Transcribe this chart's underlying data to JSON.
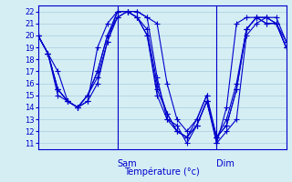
{
  "title": "Température (°c)",
  "bg_color": "#d4eef4",
  "line_color": "#0000cc",
  "grid_color": "#aaccdd",
  "ylim": [
    10.5,
    22.5
  ],
  "ylabel_ticks": [
    11,
    12,
    13,
    14,
    15,
    16,
    17,
    18,
    19,
    20,
    21,
    22
  ],
  "series": [
    [
      20.0,
      18.5,
      17.0,
      14.5,
      14.0,
      14.5,
      19.0,
      21.0,
      22.0,
      22.0,
      22.0,
      21.5,
      21.0,
      16.0,
      13.0,
      12.0,
      13.0,
      15.0,
      11.0,
      14.0,
      21.0,
      21.5,
      21.5,
      21.5,
      21.0,
      19.0
    ],
    [
      20.0,
      18.5,
      15.0,
      14.5,
      14.0,
      14.5,
      16.0,
      19.5,
      22.0,
      22.0,
      22.0,
      21.5,
      16.5,
      13.0,
      12.5,
      11.0,
      12.5,
      14.5,
      11.0,
      12.0,
      13.0,
      20.0,
      21.0,
      21.5,
      21.5,
      19.5
    ],
    [
      20.0,
      18.5,
      15.5,
      14.5,
      14.0,
      15.0,
      17.0,
      20.0,
      22.0,
      22.0,
      21.5,
      20.0,
      15.0,
      13.0,
      12.0,
      11.5,
      13.0,
      15.0,
      11.5,
      13.0,
      16.0,
      20.5,
      21.5,
      21.5,
      21.0,
      19.5
    ],
    [
      20.0,
      18.5,
      15.5,
      14.5,
      14.0,
      15.0,
      16.5,
      19.5,
      21.5,
      22.0,
      21.5,
      20.0,
      15.5,
      13.5,
      12.0,
      11.5,
      12.5,
      14.5,
      11.5,
      12.5,
      15.5,
      20.5,
      21.5,
      21.0,
      21.0,
      19.0
    ],
    [
      20.0,
      18.5,
      15.5,
      14.5,
      14.0,
      15.0,
      17.0,
      20.0,
      21.5,
      22.0,
      21.5,
      20.5,
      16.0,
      13.5,
      12.0,
      11.5,
      12.5,
      14.5,
      11.5,
      12.5,
      15.5,
      20.5,
      21.5,
      21.0,
      21.0,
      19.0
    ]
  ],
  "n_points": 26,
  "sam_idx": 8,
  "dim_idx": 18,
  "sam_label": "Sam",
  "dim_label": "Dim",
  "xlabel": "Température (°c)",
  "label_fontsize": 7,
  "tick_fontsize": 6
}
